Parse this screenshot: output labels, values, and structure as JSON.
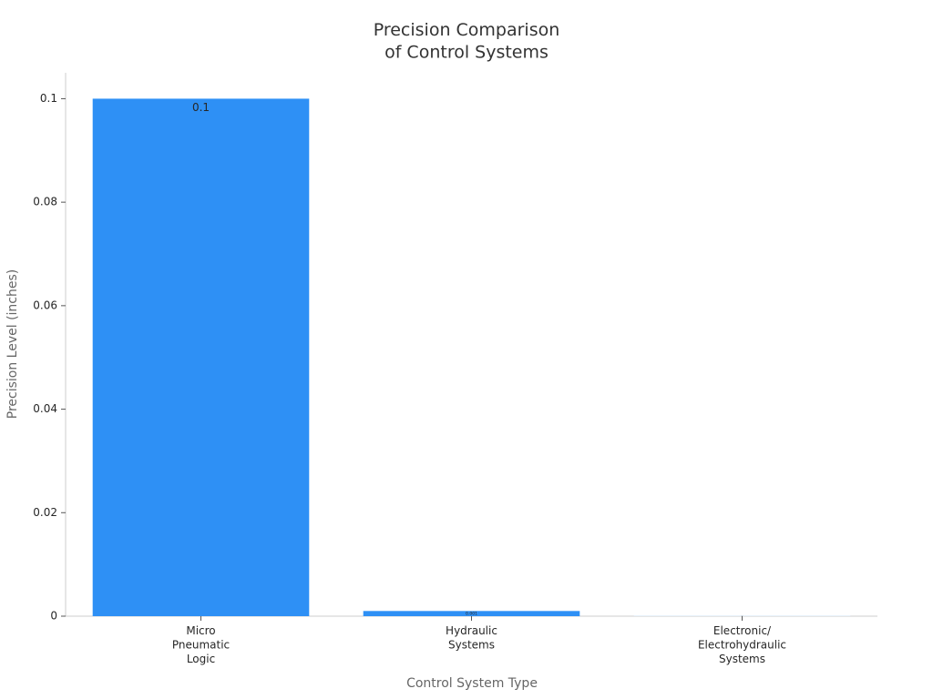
{
  "chart_data": {
    "type": "bar",
    "title": "Precision Comparison\nof Control Systems",
    "x_label": "Control System Type",
    "y_label": "Precision Level (inches)",
    "categories": [
      "Micro\nPneumatic\nLogic",
      "Hydraulic\nSystems",
      "Electronic/\nElectrohydraulic\nSystems"
    ],
    "values": [
      0.1,
      0.001,
      0.0001
    ],
    "colors": [
      "#2e90f5",
      "#2e90f5",
      "#d6e6f5"
    ],
    "ylim": [
      0,
      0.105
    ],
    "yticks": [
      0,
      0.02,
      0.04,
      0.06,
      0.08,
      0.1
    ],
    "grid": false
  }
}
